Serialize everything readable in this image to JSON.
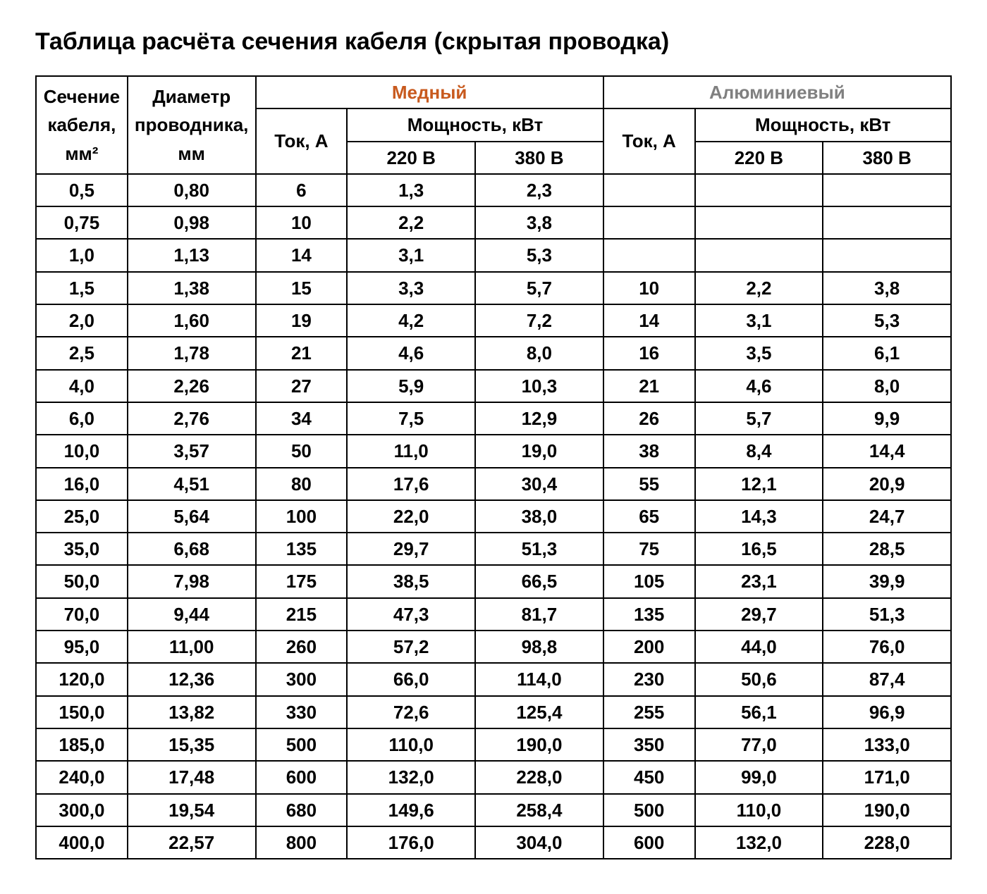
{
  "title": "Таблица расчёта сечения кабеля (скрытая проводка)",
  "headers": {
    "section": "Сечение кабеля, мм²",
    "diameter": "Диаметр проводника, мм",
    "copper": "Медный",
    "aluminum": "Алюминиевый",
    "current": "Ток, А",
    "power": "Мощность, кВт",
    "v220": "220 В",
    "v380": "380 В"
  },
  "columns": [
    "section",
    "diameter",
    "cu_current",
    "cu_220",
    "cu_380",
    "al_current",
    "al_220",
    "al_380"
  ],
  "rows": [
    [
      "0,5",
      "0,80",
      "6",
      "1,3",
      "2,3",
      "",
      "",
      ""
    ],
    [
      "0,75",
      "0,98",
      "10",
      "2,2",
      "3,8",
      "",
      "",
      ""
    ],
    [
      "1,0",
      "1,13",
      "14",
      "3,1",
      "5,3",
      "",
      "",
      ""
    ],
    [
      "1,5",
      "1,38",
      "15",
      "3,3",
      "5,7",
      "10",
      "2,2",
      "3,8"
    ],
    [
      "2,0",
      "1,60",
      "19",
      "4,2",
      "7,2",
      "14",
      "3,1",
      "5,3"
    ],
    [
      "2,5",
      "1,78",
      "21",
      "4,6",
      "8,0",
      "16",
      "3,5",
      "6,1"
    ],
    [
      "4,0",
      "2,26",
      "27",
      "5,9",
      "10,3",
      "21",
      "4,6",
      "8,0"
    ],
    [
      "6,0",
      "2,76",
      "34",
      "7,5",
      "12,9",
      "26",
      "5,7",
      "9,9"
    ],
    [
      "10,0",
      "3,57",
      "50",
      "11,0",
      "19,0",
      "38",
      "8,4",
      "14,4"
    ],
    [
      "16,0",
      "4,51",
      "80",
      "17,6",
      "30,4",
      "55",
      "12,1",
      "20,9"
    ],
    [
      "25,0",
      "5,64",
      "100",
      "22,0",
      "38,0",
      "65",
      "14,3",
      "24,7"
    ],
    [
      "35,0",
      "6,68",
      "135",
      "29,7",
      "51,3",
      "75",
      "16,5",
      "28,5"
    ],
    [
      "50,0",
      "7,98",
      "175",
      "38,5",
      "66,5",
      "105",
      "23,1",
      "39,9"
    ],
    [
      "70,0",
      "9,44",
      "215",
      "47,3",
      "81,7",
      "135",
      "29,7",
      "51,3"
    ],
    [
      "95,0",
      "11,00",
      "260",
      "57,2",
      "98,8",
      "200",
      "44,0",
      "76,0"
    ],
    [
      "120,0",
      "12,36",
      "300",
      "66,0",
      "114,0",
      "230",
      "50,6",
      "87,4"
    ],
    [
      "150,0",
      "13,82",
      "330",
      "72,6",
      "125,4",
      "255",
      "56,1",
      "96,9"
    ],
    [
      "185,0",
      "15,35",
      "500",
      "110,0",
      "190,0",
      "350",
      "77,0",
      "133,0"
    ],
    [
      "240,0",
      "17,48",
      "600",
      "132,0",
      "228,0",
      "450",
      "99,0",
      "171,0"
    ],
    [
      "300,0",
      "19,54",
      "680",
      "149,6",
      "258,4",
      "500",
      "110,0",
      "190,0"
    ],
    [
      "400,0",
      "22,57",
      "800",
      "176,0",
      "304,0",
      "600",
      "132,0",
      "228,0"
    ]
  ],
  "style": {
    "title_fontsize": 34,
    "cell_fontsize": 26,
    "border_color": "#000000",
    "text_color": "#000000",
    "copper_color": "#c85a1e",
    "aluminum_color": "#808080",
    "background": "#ffffff"
  }
}
